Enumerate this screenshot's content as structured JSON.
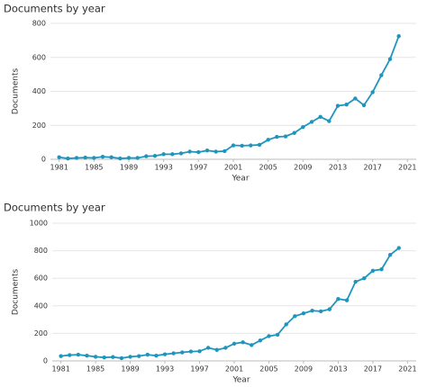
{
  "chart_data": [
    {
      "type": "line",
      "title": "Documents by year",
      "x_label": "Year",
      "y_label": "Documents",
      "x": [
        1981,
        1982,
        1983,
        1984,
        1985,
        1986,
        1987,
        1988,
        1989,
        1990,
        1991,
        1992,
        1993,
        1994,
        1995,
        1996,
        1997,
        1998,
        1999,
        2000,
        2001,
        2002,
        2003,
        2004,
        2005,
        2006,
        2007,
        2008,
        2009,
        2010,
        2011,
        2012,
        2013,
        2014,
        2015,
        2016,
        2017,
        2018,
        2019,
        2020
      ],
      "series": [
        {
          "name": "Documents",
          "color": "#1f95bd",
          "values": [
            12,
            5,
            8,
            10,
            8,
            15,
            12,
            5,
            8,
            8,
            18,
            20,
            30,
            30,
            35,
            45,
            42,
            52,
            45,
            48,
            82,
            80,
            82,
            85,
            115,
            132,
            135,
            155,
            190,
            220,
            250,
            225,
            315,
            322,
            358,
            318,
            395,
            495,
            590,
            725
          ]
        }
      ],
      "xlim": [
        1980,
        2022
      ],
      "xticks": [
        1981,
        1985,
        1989,
        1993,
        1997,
        2001,
        2005,
        2009,
        2013,
        2017,
        2021
      ],
      "ylim": [
        0,
        800
      ],
      "yticks": [
        0,
        200,
        400,
        600,
        800
      ],
      "grid": true
    },
    {
      "type": "line",
      "title": "Documents by year",
      "x_label": "Year",
      "y_label": "Documents",
      "x": [
        1981,
        1982,
        1983,
        1984,
        1985,
        1986,
        1987,
        1988,
        1989,
        1990,
        1991,
        1992,
        1993,
        1994,
        1995,
        1996,
        1997,
        1998,
        1999,
        2000,
        2001,
        2002,
        2003,
        2004,
        2005,
        2006,
        2007,
        2008,
        2009,
        2010,
        2011,
        2012,
        2013,
        2014,
        2015,
        2016,
        2017,
        2018,
        2019,
        2020
      ],
      "series": [
        {
          "name": "Documents",
          "color": "#1f95bd",
          "values": [
            35,
            42,
            45,
            38,
            30,
            25,
            28,
            20,
            30,
            35,
            45,
            38,
            48,
            55,
            62,
            68,
            70,
            95,
            80,
            95,
            125,
            135,
            115,
            148,
            180,
            190,
            265,
            325,
            345,
            365,
            360,
            375,
            450,
            440,
            575,
            600,
            655,
            665,
            770,
            820
          ]
        }
      ],
      "xlim": [
        1980,
        2022
      ],
      "xticks": [
        1981,
        1985,
        1989,
        1993,
        1997,
        2001,
        2005,
        2009,
        2013,
        2017,
        2021
      ],
      "ylim": [
        0,
        1000
      ],
      "yticks": [
        0,
        200,
        400,
        600,
        800,
        1000
      ],
      "grid": true
    }
  ]
}
